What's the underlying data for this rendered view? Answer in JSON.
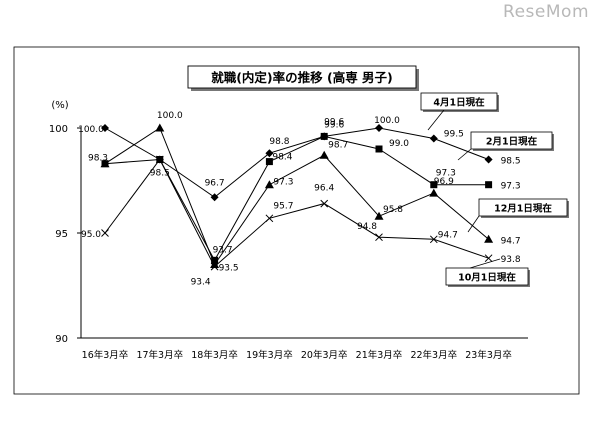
{
  "watermark": "ReseMom",
  "chart_data": {
    "type": "line",
    "title": "就職(内定)率の推移 (高専 男子)",
    "ylabel": "(%)",
    "ylim": [
      90,
      100
    ],
    "yticks": [
      "100",
      "95",
      "90"
    ],
    "categories": [
      "16年3月卒",
      "17年3月卒",
      "18年3月卒",
      "19年3月卒",
      "20年3月卒",
      "21年3月卒",
      "22年3月卒",
      "23年3月卒"
    ],
    "grid": false,
    "legend": "callout labels at line ends",
    "series": [
      {
        "name": "4月1日現在",
        "marker": "diamond",
        "values": [
          100.0,
          98.5,
          96.7,
          98.8,
          99.6,
          100.0,
          99.5,
          98.5
        ],
        "labels": [
          "100.0",
          "98.5",
          "96.7",
          "98.8",
          "99.6",
          "100.0",
          "99.5",
          "98.5"
        ]
      },
      {
        "name": "2月1日現在",
        "marker": "square",
        "values": [
          98.3,
          98.5,
          93.7,
          98.4,
          99.6,
          99.0,
          97.3,
          97.3
        ],
        "labels": [
          "98.3",
          "",
          "93.7",
          "98.4",
          "99.6",
          "99.0",
          "97.3",
          "97.3"
        ]
      },
      {
        "name": "12月1日現在",
        "marker": "triangle",
        "values": [
          98.3,
          100.0,
          93.5,
          97.3,
          98.7,
          95.8,
          96.9,
          94.7
        ],
        "labels": [
          "",
          "100.0",
          "93.5",
          "97.3",
          "98.7",
          "95.8",
          "96.9",
          "94.7"
        ]
      },
      {
        "name": "10月1日現在",
        "marker": "x",
        "values": [
          95.0,
          98.5,
          93.4,
          95.7,
          96.4,
          94.8,
          94.7,
          93.8
        ],
        "labels": [
          "95.0",
          "",
          "93.4",
          "95.7",
          "96.4",
          "94.8",
          "94.7",
          "93.8"
        ]
      }
    ]
  }
}
